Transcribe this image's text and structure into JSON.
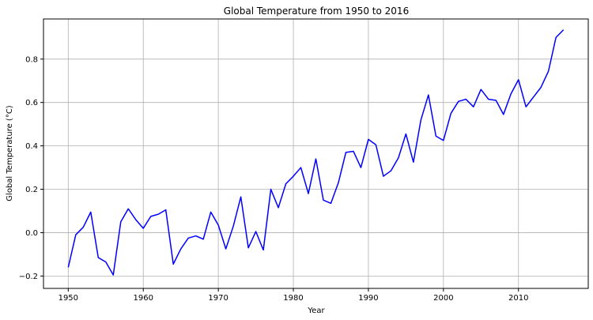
{
  "chart_data": {
    "type": "line",
    "title": "Global Temperature from 1950 to 2016",
    "xlabel": "Year",
    "ylabel": "Global Temperature (°C)",
    "xlim": [
      1946.7,
      2019.3
    ],
    "ylim": [
      -0.257,
      0.985
    ],
    "grid": true,
    "x_ticks": [
      1950,
      1960,
      1970,
      1980,
      1990,
      2000,
      2010
    ],
    "x_tick_labels": [
      "1950",
      "1960",
      "1970",
      "1980",
      "1990",
      "2000",
      "2010"
    ],
    "y_ticks": [
      -0.2,
      0.0,
      0.2,
      0.4,
      0.6,
      0.8
    ],
    "y_tick_labels": [
      "−0.2",
      "0.0",
      "0.2",
      "0.4",
      "0.6",
      "0.8"
    ],
    "line_color": "#0000ff",
    "grid_color": "#b0b0b0",
    "series": [
      {
        "name": "Global Temperature",
        "x": [
          1950,
          1951,
          1952,
          1953,
          1954,
          1955,
          1956,
          1957,
          1958,
          1959,
          1960,
          1961,
          1962,
          1963,
          1964,
          1965,
          1966,
          1967,
          1968,
          1969,
          1970,
          1971,
          1972,
          1973,
          1974,
          1975,
          1976,
          1977,
          1978,
          1979,
          1980,
          1981,
          1982,
          1983,
          1984,
          1985,
          1986,
          1987,
          1988,
          1989,
          1990,
          1991,
          1992,
          1993,
          1994,
          1995,
          1996,
          1997,
          1998,
          1999,
          2000,
          2001,
          2002,
          2003,
          2004,
          2005,
          2006,
          2007,
          2008,
          2009,
          2010,
          2011,
          2012,
          2013,
          2014,
          2015,
          2016
        ],
        "values": [
          -0.16,
          -0.01,
          0.025,
          0.095,
          -0.115,
          -0.135,
          -0.195,
          0.05,
          0.11,
          0.06,
          0.02,
          0.075,
          0.085,
          0.105,
          -0.145,
          -0.075,
          -0.025,
          -0.015,
          -0.03,
          0.095,
          0.035,
          -0.075,
          0.03,
          0.165,
          -0.07,
          0.005,
          -0.08,
          0.2,
          0.115,
          0.225,
          0.26,
          0.3,
          0.18,
          0.34,
          0.15,
          0.135,
          0.23,
          0.37,
          0.375,
          0.3,
          0.43,
          0.405,
          0.26,
          0.285,
          0.345,
          0.455,
          0.325,
          0.52,
          0.635,
          0.445,
          0.425,
          0.55,
          0.605,
          0.615,
          0.58,
          0.66,
          0.615,
          0.61,
          0.545,
          0.64,
          0.705,
          0.58,
          0.625,
          0.67,
          0.745,
          0.9,
          0.935
        ]
      }
    ]
  }
}
